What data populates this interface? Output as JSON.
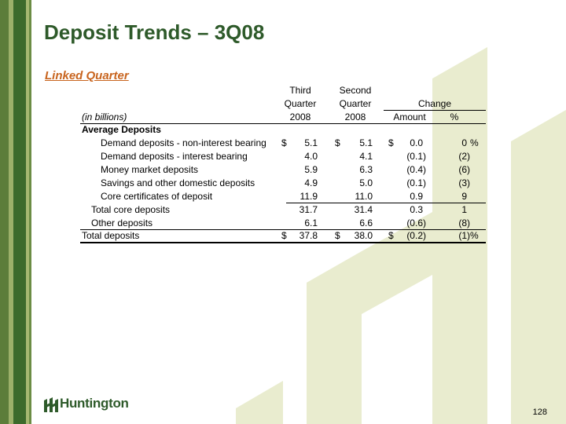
{
  "title": "Deposit Trends – 3Q08",
  "subtitle": "Linked Quarter",
  "table": {
    "header": {
      "third_l1": "Third",
      "third_l2": "Quarter",
      "third_l3": "2008",
      "second_l1": "Second",
      "second_l2": "Quarter",
      "second_l3": "2008",
      "change": "Change",
      "amount": "Amount",
      "pct": "%",
      "units": "(in billions)"
    },
    "section": "Average Deposits",
    "rows": [
      {
        "label": "Demand deposits - non-interest bearing",
        "cur": "$",
        "q3": "5.1",
        "cur2": "$",
        "q2": "5.1",
        "cur3": "$",
        "amount": "0.0",
        "pct": "0",
        "pct_sign": "%"
      },
      {
        "label": "Demand deposits - interest bearing",
        "q3": "4.0",
        "q2": "4.1",
        "amount": "(0.1)",
        "pct": "(2)"
      },
      {
        "label": "Money market deposits",
        "q3": "5.9",
        "q2": "6.3",
        "amount": "(0.4)",
        "pct": "(6)"
      },
      {
        "label": "Savings and other domestic deposits",
        "q3": "4.9",
        "q2": "5.0",
        "amount": "(0.1)",
        "pct": "(3)"
      },
      {
        "label": "Core certificates of deposit",
        "q3": "11.9",
        "q2": "11.0",
        "amount": "0.9",
        "pct": "9"
      },
      {
        "label": "Total core deposits",
        "q3": "31.7",
        "q2": "31.4",
        "amount": "0.3",
        "pct": "1"
      },
      {
        "label": "Other deposits",
        "q3": "6.1",
        "q2": "6.6",
        "amount": "(0.6)",
        "pct": "(8)"
      },
      {
        "label": "Total deposits",
        "cur": "$",
        "q3": "37.8",
        "cur2": "$",
        "q2": "38.0",
        "cur3": "$",
        "amount": "(0.2)",
        "pct": "(1)",
        "pct_sign": "%"
      }
    ]
  },
  "footer": {
    "logo_text": "Huntington",
    "page_number": "128"
  },
  "colors": {
    "brand_green": "#2e5a2a",
    "accent_orange": "#c8641e",
    "watermark": "#e9eccf"
  }
}
